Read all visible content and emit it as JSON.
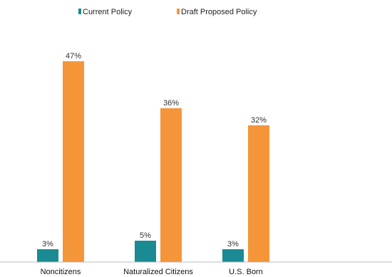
{
  "chart_data": {
    "type": "bar",
    "categories": [
      "Noncitizens",
      "Naturalized Citizens",
      "U.S. Born"
    ],
    "series": [
      {
        "name": "Current Policy",
        "values": [
          3,
          5,
          3
        ],
        "color": "#1a8a93"
      },
      {
        "name": "Draft Proposed Policy",
        "values": [
          47,
          36,
          32
        ],
        "color": "#f5953a"
      }
    ],
    "value_suffix": "%",
    "ylim": [
      0,
      50
    ],
    "grid": false,
    "legend_position": "top-center",
    "axis_line_color": "#bbbbbb"
  }
}
